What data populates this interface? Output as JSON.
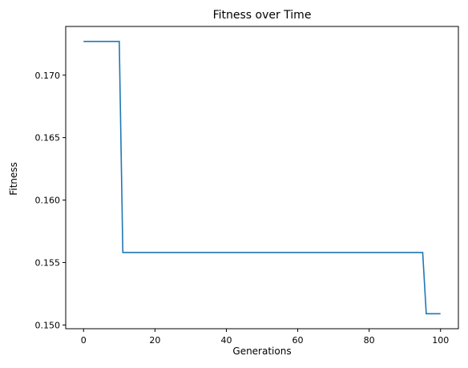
{
  "chart_data": {
    "type": "line",
    "title": "Fitness over Time",
    "xlabel": "Generations",
    "ylabel": "Fitness",
    "xlim": [
      -5,
      105
    ],
    "ylim": [
      0.1497,
      0.1739
    ],
    "xticks": [
      0,
      20,
      40,
      60,
      80,
      100
    ],
    "xtick_labels": [
      "0",
      "20",
      "40",
      "60",
      "80",
      "100"
    ],
    "yticks": [
      0.15,
      0.155,
      0.16,
      0.165,
      0.17
    ],
    "ytick_labels": [
      "0.150",
      "0.155",
      "0.160",
      "0.165",
      "0.170"
    ],
    "grid": false,
    "legend": "none",
    "series": [
      {
        "color": "#1f77b4",
        "x": [
          0,
          1,
          2,
          3,
          4,
          5,
          6,
          7,
          8,
          9,
          10,
          11,
          12,
          20,
          30,
          40,
          50,
          60,
          70,
          80,
          90,
          95,
          96,
          97,
          98,
          99,
          100
        ],
        "y": [
          0.1727,
          0.1727,
          0.1727,
          0.1727,
          0.1727,
          0.1727,
          0.1727,
          0.1727,
          0.1727,
          0.1727,
          0.1727,
          0.1558,
          0.1558,
          0.1558,
          0.1558,
          0.1558,
          0.1558,
          0.1558,
          0.1558,
          0.1558,
          0.1558,
          0.1558,
          0.1509,
          0.1509,
          0.1509,
          0.1509,
          0.1509
        ]
      }
    ]
  }
}
